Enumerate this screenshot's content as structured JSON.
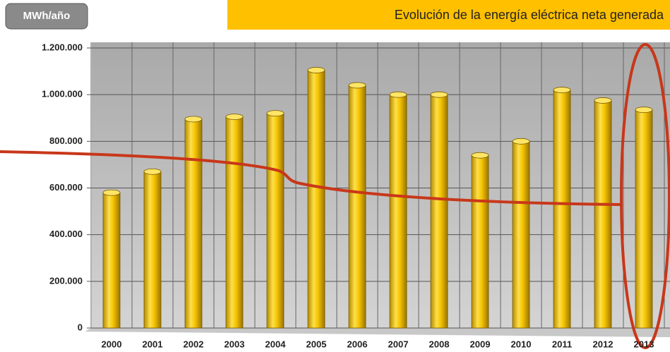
{
  "chart_data": {
    "type": "bar",
    "title": "Evolución de la energía eléctrica neta generada",
    "y_label": "MWh/año",
    "categories": [
      "2000",
      "2001",
      "2002",
      "2003",
      "2004",
      "2005",
      "2006",
      "2007",
      "2008",
      "2009",
      "2010",
      "2011",
      "2012",
      "2013"
    ],
    "values": [
      580000,
      670000,
      895000,
      905000,
      920000,
      1105000,
      1040000,
      1000000,
      1000000,
      740000,
      800000,
      1020000,
      975000,
      935000
    ],
    "color": "#f5c400",
    "ylim": [
      0,
      1200000
    ],
    "yticks": [
      0,
      {
        "value": 200000,
        "label": "200.000"
      },
      {
        "value": 400000,
        "label": "400.000"
      },
      {
        "value": 600000,
        "label": "600.000"
      },
      {
        "value": 800000,
        "label": "800.000"
      },
      {
        "value": 1000000,
        "label": "1.000.000"
      },
      {
        "value": 1200000,
        "label": "1.200.000"
      }
    ],
    "grid": true
  }
}
